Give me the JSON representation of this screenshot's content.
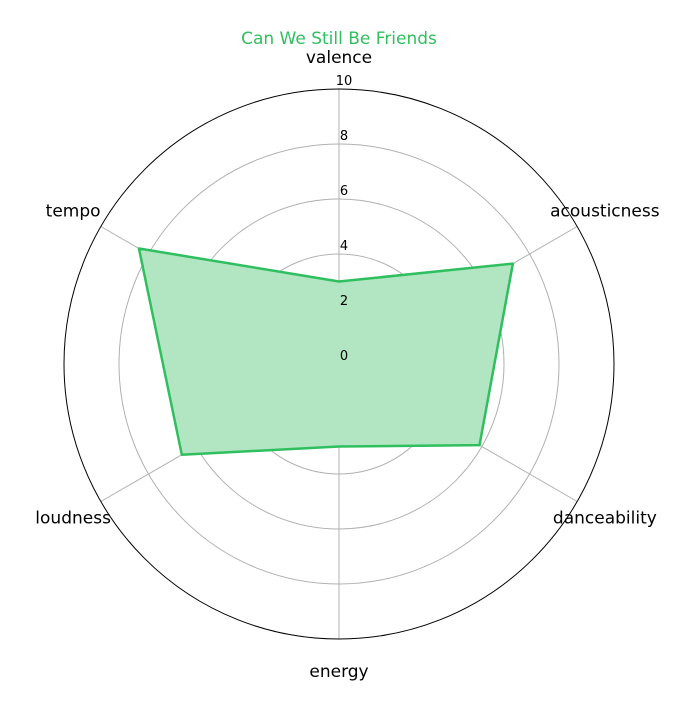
{
  "chart_data": {
    "type": "radar",
    "title": "Can We Still Be Friends",
    "axes": [
      "valence",
      "acousticness",
      "danceability",
      "energy",
      "loudness",
      "tempo"
    ],
    "values": [
      3.0,
      7.3,
      5.9,
      3.0,
      6.6,
      8.4
    ],
    "rlim": [
      0,
      10
    ],
    "rticks": [
      "0",
      "2",
      "4",
      "6",
      "8",
      "10"
    ],
    "grid": true,
    "colors": {
      "series": "#2fbf5f",
      "fill": "#b2e6c3",
      "title": "#2fbf5f",
      "grid": "#b0b0b0",
      "frame": "#000000"
    }
  }
}
